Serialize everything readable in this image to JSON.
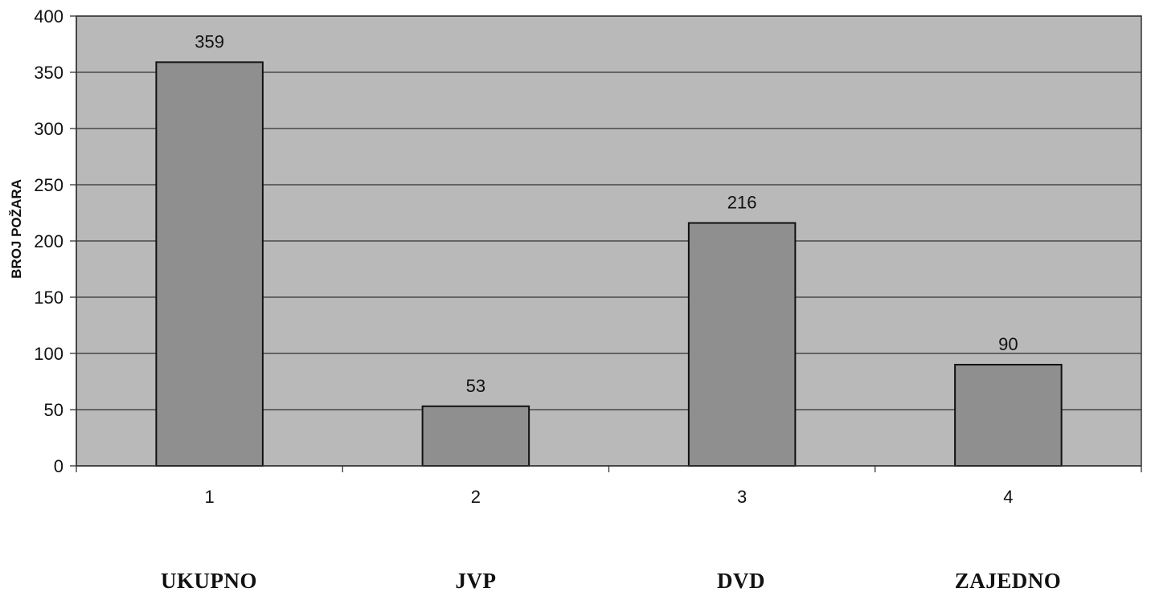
{
  "colors": {
    "plot_bg": "#b9b9b9",
    "bar_fill": "#8f8f8f",
    "bar_stroke": "#111111",
    "gridline": "#333333",
    "text": "#111111"
  },
  "chart_data": {
    "type": "bar",
    "title": "",
    "xlabel": "",
    "ylabel": "BROJ POŽARA",
    "categories": [
      "1",
      "2",
      "3",
      "4"
    ],
    "values": [
      359,
      53,
      216,
      90
    ],
    "data_labels": [
      "359",
      "53",
      "216",
      "90"
    ],
    "ylim": [
      0,
      400
    ],
    "yticks": [
      0,
      50,
      100,
      150,
      200,
      250,
      300,
      350,
      400
    ],
    "grid": true,
    "legend": "none"
  },
  "category_names": [
    "UKUPNO",
    "JVP",
    "DVD",
    "ZAJEDNO"
  ]
}
